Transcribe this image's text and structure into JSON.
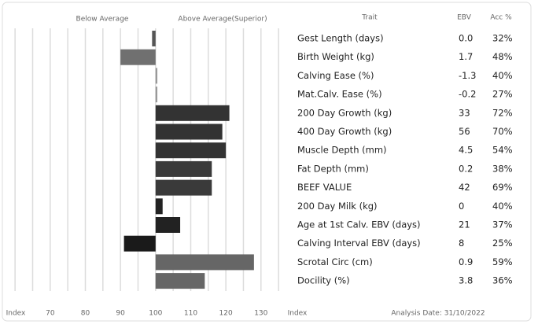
{
  "chart_data": {
    "type": "bar",
    "labels_top": [
      "Below Average",
      "Above Average(Superior)"
    ],
    "categories": [
      "Gest Length (days)",
      "Birth Weight (kg)",
      "Calving Ease (%)",
      "Mat.Calv. Ease (%)",
      "200 Day Growth (kg)",
      "400 Day Growth (kg)",
      "Muscle Depth (mm)",
      "Fat Depth (mm)",
      "BEEF VALUE",
      "200 Day Milk (kg)",
      "Age at 1st Calv. EBV (days)",
      "Calving Interval EBV (days)",
      "Scrotal Circ (cm)",
      "Docility (%)"
    ],
    "values": [
      99,
      90,
      100.5,
      100.5,
      121,
      119,
      120,
      116,
      116,
      102,
      107,
      91,
      128,
      114
    ],
    "colors": [
      "#555555",
      "#707070",
      "#999999",
      "#999999",
      "#333333",
      "#333333",
      "#333333",
      "#3a3a3a",
      "#3a3a3a",
      "#222222",
      "#222222",
      "#1a1a1a",
      "#666666",
      "#666666"
    ],
    "base": 100,
    "xlim": [
      57.5,
      136
    ],
    "xticks": [
      70,
      80,
      90,
      100,
      110,
      120,
      130
    ],
    "grid_lines": [
      60,
      65,
      70,
      75,
      80,
      85,
      90,
      95,
      100,
      105,
      110,
      115,
      120,
      125,
      130,
      135
    ],
    "xlabel": "Index"
  },
  "table": {
    "headers": [
      "Trait",
      "EBV",
      "Acc %"
    ],
    "rows": [
      [
        "0.0",
        "32%"
      ],
      [
        "1.7",
        "48%"
      ],
      [
        "-1.3",
        "40%"
      ],
      [
        "-0.2",
        "27%"
      ],
      [
        "33",
        "72%"
      ],
      [
        "56",
        "70%"
      ],
      [
        "4.5",
        "54%"
      ],
      [
        "0.2",
        "38%"
      ],
      [
        "42",
        "69%"
      ],
      [
        "0",
        "40%"
      ],
      [
        "21",
        "37%"
      ],
      [
        "8",
        "25%"
      ],
      [
        "0.9",
        "59%"
      ],
      [
        "3.8",
        "36%"
      ]
    ],
    "footer_label": "Index",
    "analysis_date": "Analysis Date: 31/10/2022"
  }
}
